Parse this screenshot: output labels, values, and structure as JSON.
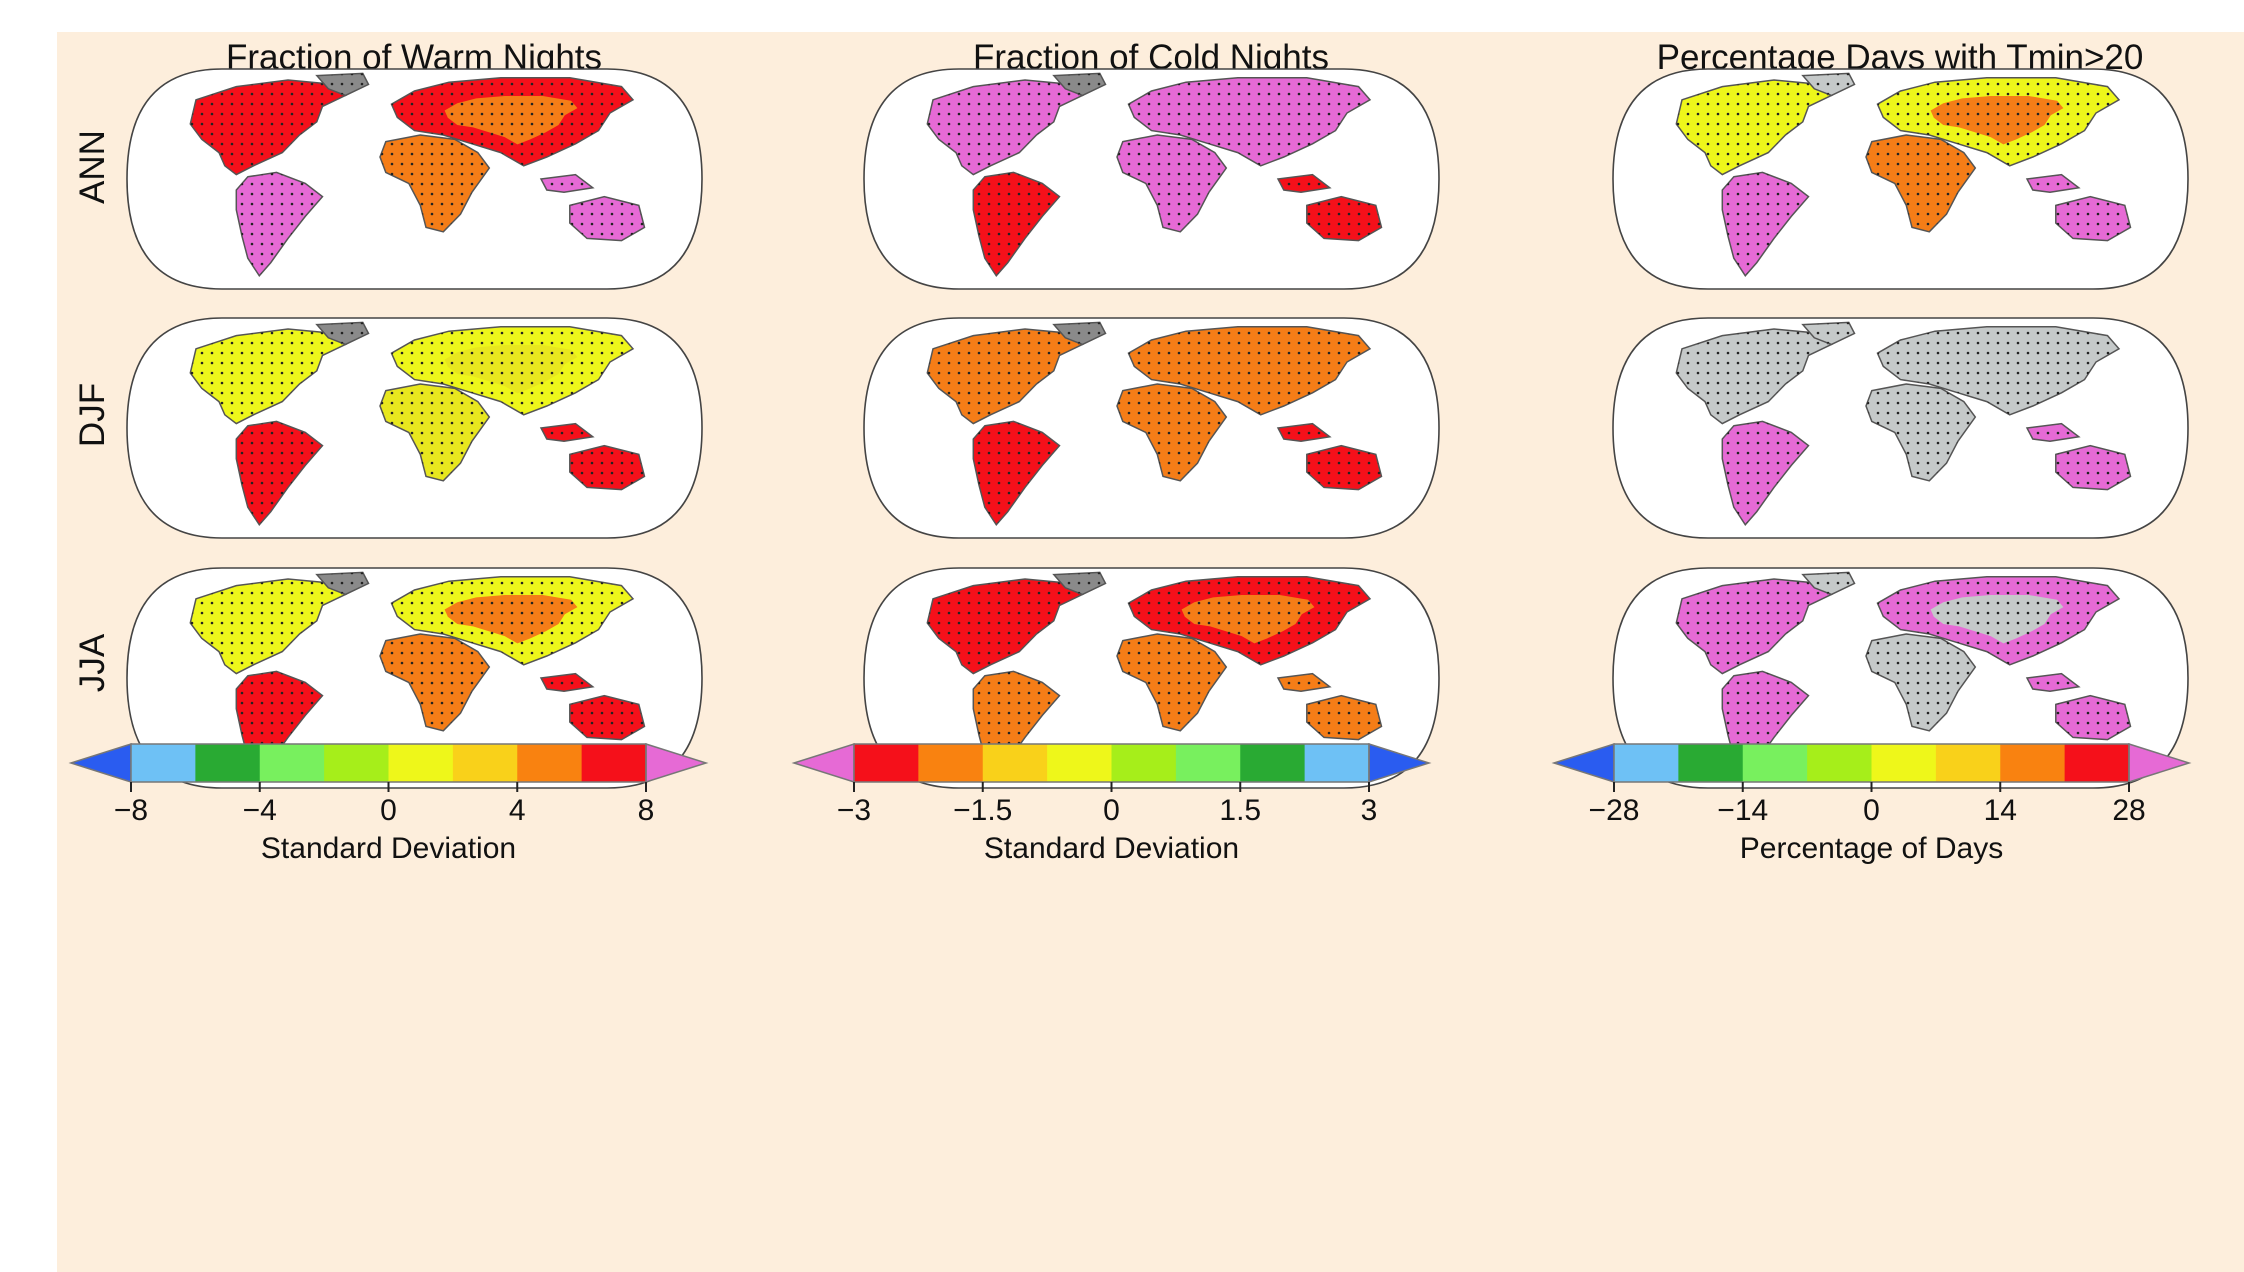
{
  "columns": [
    {
      "title": "Fraction of Warm Nights",
      "colorbar": {
        "label": "Standard Deviation",
        "ticks": [
          "−8",
          "−4",
          "0",
          "4",
          "8"
        ],
        "colors": [
          "#2a5cf0",
          "#6ec1f5",
          "#29aa33",
          "#78f05e",
          "#a6ee1a",
          "#eef71a",
          "#f9d11a",
          "#f98210",
          "#f5101a",
          "#e66ad5"
        ]
      },
      "maps": {
        "ANN": {
          "base": "#f57d17",
          "north": "#f5101a",
          "south": "#e66ad5"
        },
        "DJF": {
          "base": "#e8e71e",
          "north": "#eef71a",
          "south": "#f5101a"
        },
        "JJA": {
          "base": "#f57d17",
          "north": "#eef71a",
          "south": "#f5101a"
        }
      }
    },
    {
      "title": "Fraction of Cold Nights",
      "colorbar": {
        "label": "Standard Deviation",
        "ticks": [
          "−3",
          "−1.5",
          "0",
          "1.5",
          "3"
        ],
        "colors": [
          "#e66ad5",
          "#f5101a",
          "#f98210",
          "#f9d11a",
          "#eef71a",
          "#a6ee1a",
          "#78f05e",
          "#29aa33",
          "#6ec1f5",
          "#2a5cf0"
        ]
      },
      "maps": {
        "ANN": {
          "base": "#e66ad5",
          "north": "#e66ad5",
          "south": "#f5101a"
        },
        "DJF": {
          "base": "#f57d17",
          "north": "#f57d17",
          "south": "#f5101a"
        },
        "JJA": {
          "base": "#f57d17",
          "north": "#f5101a",
          "south": "#f57d17"
        }
      }
    },
    {
      "title": "Percentage Days with Tmin>20",
      "colorbar": {
        "label": "Percentage of Days",
        "ticks": [
          "−28",
          "−14",
          "0",
          "14",
          "28"
        ],
        "colors": [
          "#2a5cf0",
          "#6ec1f5",
          "#29aa33",
          "#78f05e",
          "#a6ee1a",
          "#eef71a",
          "#f9d11a",
          "#f98210",
          "#f5101a",
          "#e66ad5"
        ]
      },
      "maps": {
        "ANN": {
          "base": "#f57d17",
          "north": "#eef71a",
          "south": "#e66ad5"
        },
        "DJF": {
          "base": "#c5c9c9",
          "north": "#c5c9c9",
          "south": "#e66ad5"
        },
        "JJA": {
          "base": "#c5c9c9",
          "north": "#e66ad5",
          "south": "#e66ad5"
        }
      }
    }
  ],
  "rows": [
    "ANN",
    "DJF",
    "JJA"
  ]
}
